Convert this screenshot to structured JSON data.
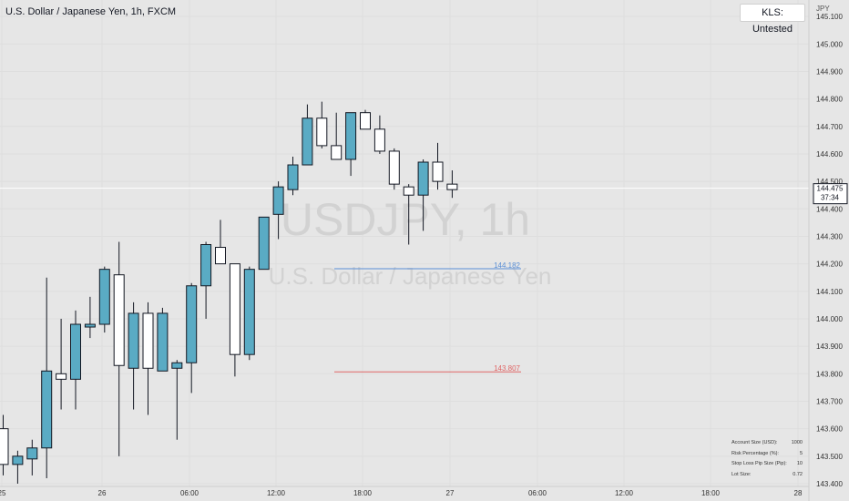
{
  "header": {
    "symbol_title": "U.S. Dollar / Japanese Yen, 1h, FXCM"
  },
  "badge": {
    "label": "KLS: Untested"
  },
  "watermark": {
    "symbol": "USDJPY, 1h",
    "name": "U.S. Dollar / Japanese Yen"
  },
  "price_scale": {
    "currency": "JPY",
    "current_price": "144.475",
    "countdown": "37:34"
  },
  "levels": [
    {
      "label": "144.182",
      "value": 144.182,
      "color": "#5b8fd6"
    },
    {
      "label": "143.807",
      "value": 143.807,
      "color": "#e06666"
    }
  ],
  "info_table": {
    "rows": [
      {
        "label": "Account Size (USD):",
        "value": "1000"
      },
      {
        "label": "Risk Percentage (%):",
        "value": "5"
      },
      {
        "label": "Stop Loss Pip Size (Pip):",
        "value": "10"
      },
      {
        "label": "Lot Size:",
        "value": "0.72"
      }
    ]
  },
  "colors": {
    "up": "#5aabc4",
    "down": "#ffffff",
    "wick": "#131722",
    "background": "#e6e6e6"
  },
  "chart_data": {
    "type": "candlestick",
    "ylim": [
      143.39,
      145.16
    ],
    "y_ticks": [
      "145.100",
      "145.000",
      "144.900",
      "144.800",
      "144.700",
      "144.600",
      "144.500",
      "144.400",
      "144.300",
      "144.200",
      "144.100",
      "144.000",
      "143.900",
      "143.800",
      "143.700",
      "143.600",
      "143.500",
      "143.400"
    ],
    "x_ticks": [
      "25",
      "26",
      "06:00",
      "12:00",
      "18:00",
      "27",
      "06:00",
      "12:00",
      "18:00",
      "28"
    ],
    "candles": [
      {
        "o": 143.6,
        "h": 143.65,
        "l": 143.43,
        "c": 143.47
      },
      {
        "o": 143.47,
        "h": 143.52,
        "l": 143.4,
        "c": 143.5
      },
      {
        "o": 143.49,
        "h": 143.56,
        "l": 143.43,
        "c": 143.53
      },
      {
        "o": 143.53,
        "h": 144.15,
        "l": 143.42,
        "c": 143.81
      },
      {
        "o": 143.8,
        "h": 144.0,
        "l": 143.67,
        "c": 143.78
      },
      {
        "o": 143.78,
        "h": 144.03,
        "l": 143.67,
        "c": 143.98
      },
      {
        "o": 143.97,
        "h": 144.08,
        "l": 143.93,
        "c": 143.98
      },
      {
        "o": 143.98,
        "h": 144.19,
        "l": 143.95,
        "c": 144.18
      },
      {
        "o": 144.16,
        "h": 144.28,
        "l": 143.5,
        "c": 143.83
      },
      {
        "o": 143.82,
        "h": 144.06,
        "l": 143.67,
        "c": 144.02
      },
      {
        "o": 144.02,
        "h": 144.06,
        "l": 143.65,
        "c": 143.82
      },
      {
        "o": 143.81,
        "h": 144.04,
        "l": 143.82,
        "c": 144.02
      },
      {
        "o": 143.82,
        "h": 143.85,
        "l": 143.56,
        "c": 143.84
      },
      {
        "o": 143.84,
        "h": 144.13,
        "l": 143.73,
        "c": 144.12
      },
      {
        "o": 144.12,
        "h": 144.28,
        "l": 144.0,
        "c": 144.27
      },
      {
        "o": 144.26,
        "h": 144.36,
        "l": 144.2,
        "c": 144.2
      },
      {
        "o": 144.2,
        "h": 144.2,
        "l": 143.79,
        "c": 143.87
      },
      {
        "o": 143.87,
        "h": 144.19,
        "l": 143.85,
        "c": 144.18
      },
      {
        "o": 144.18,
        "h": 144.36,
        "l": 144.18,
        "c": 144.37
      },
      {
        "o": 144.38,
        "h": 144.5,
        "l": 144.29,
        "c": 144.48
      },
      {
        "o": 144.47,
        "h": 144.59,
        "l": 144.45,
        "c": 144.56
      },
      {
        "o": 144.56,
        "h": 144.78,
        "l": 144.56,
        "c": 144.73
      },
      {
        "o": 144.73,
        "h": 144.79,
        "l": 144.62,
        "c": 144.63
      },
      {
        "o": 144.63,
        "h": 144.75,
        "l": 144.58,
        "c": 144.58
      },
      {
        "o": 144.58,
        "h": 144.75,
        "l": 144.52,
        "c": 144.75
      },
      {
        "o": 144.75,
        "h": 144.76,
        "l": 144.69,
        "c": 144.69
      },
      {
        "o": 144.69,
        "h": 144.74,
        "l": 144.6,
        "c": 144.61
      },
      {
        "o": 144.61,
        "h": 144.62,
        "l": 144.47,
        "c": 144.49
      },
      {
        "o": 144.48,
        "h": 144.49,
        "l": 144.27,
        "c": 144.45
      },
      {
        "o": 144.45,
        "h": 144.58,
        "l": 144.32,
        "c": 144.57
      },
      {
        "o": 144.57,
        "h": 144.64,
        "l": 144.47,
        "c": 144.5
      },
      {
        "o": 144.49,
        "h": 144.54,
        "l": 144.44,
        "c": 144.47
      }
    ]
  }
}
